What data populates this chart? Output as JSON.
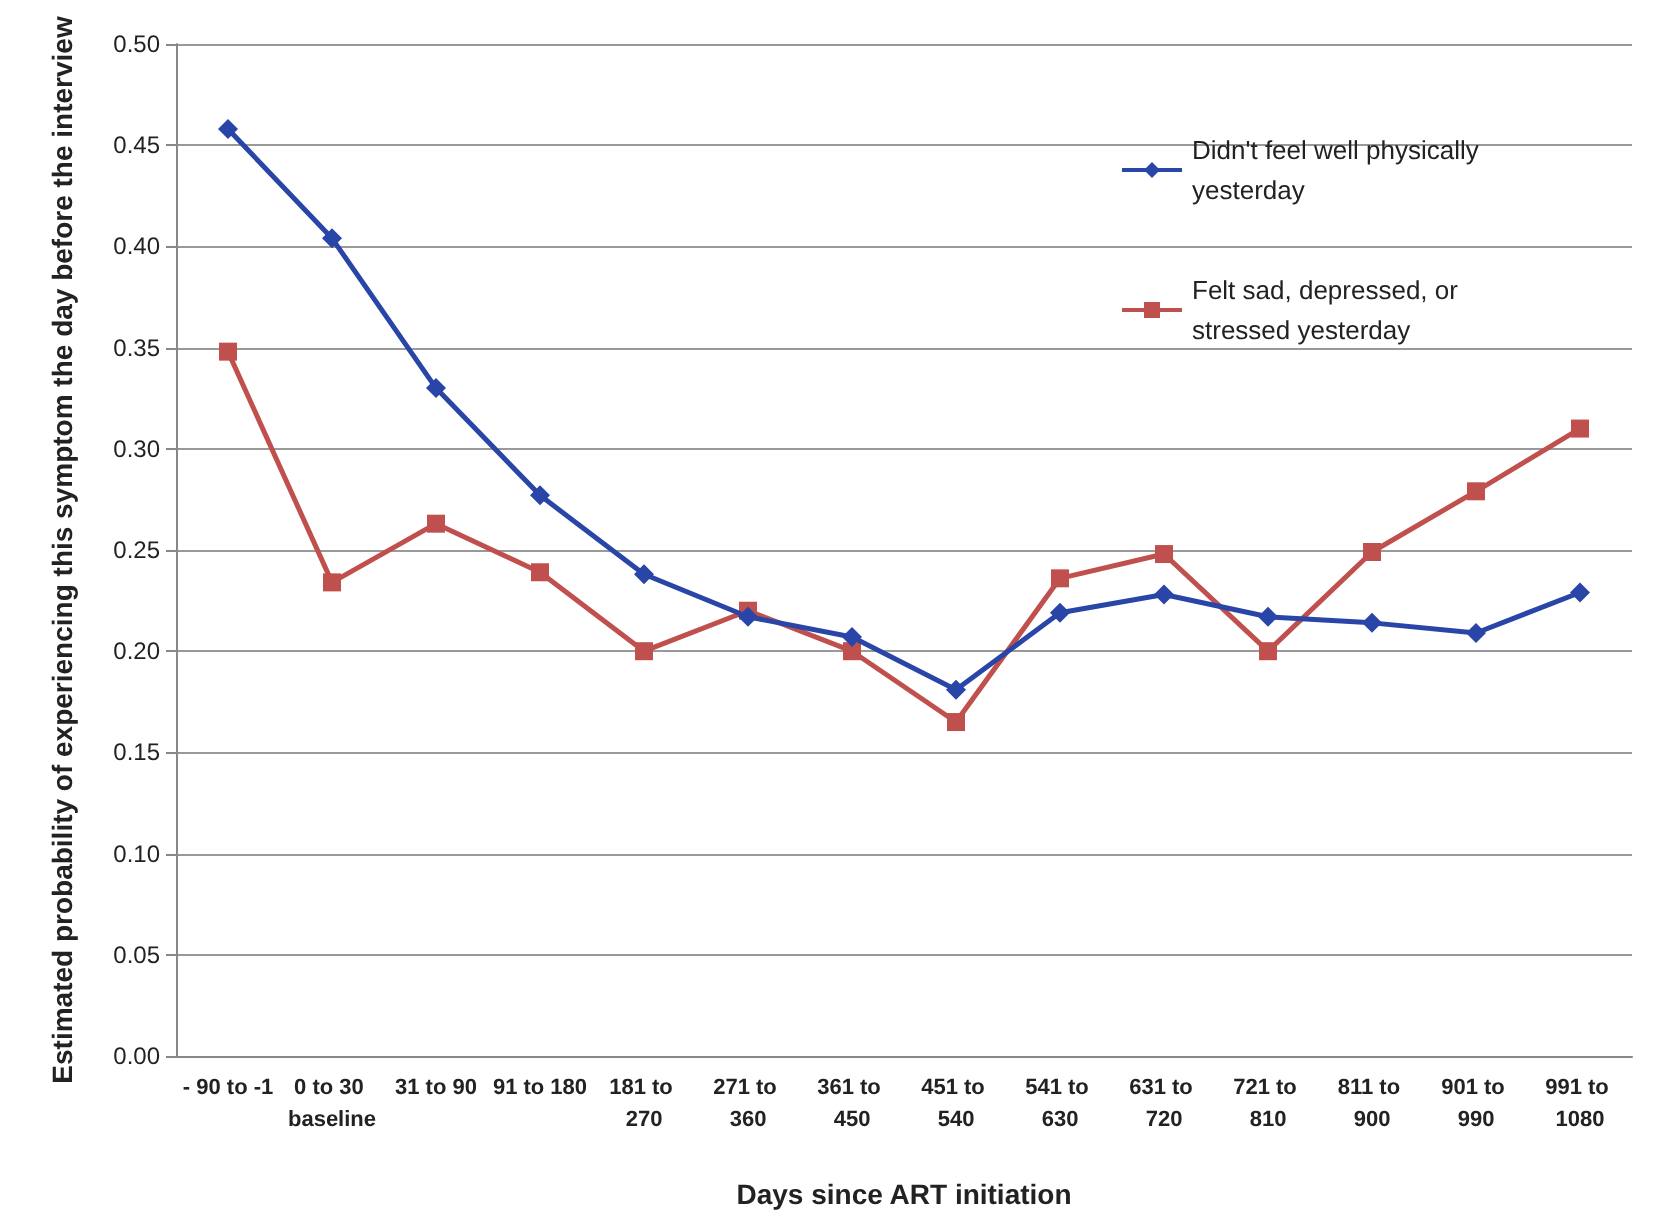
{
  "chart_data": {
    "type": "line",
    "xlabel": "Days since ART initiation",
    "ylabel": "Estimated probability of experiencing this symptom the day before the interview",
    "categories": [
      "- 90 to -1",
      "0 to 30 baseline",
      "31 to 90",
      "91 to 180",
      "181 to 270",
      "271 to 360",
      "361 to 450",
      "451 to 540",
      "541 to 630",
      "631 to 720",
      "721 to 810",
      "811 to 900",
      "901 to 990",
      "991 to 1080"
    ],
    "series": [
      {
        "name": "Didn't feel well physically yesterday",
        "color": "#2a45a8",
        "marker": "diamond",
        "values": [
          0.458,
          0.404,
          0.33,
          0.277,
          0.238,
          0.217,
          0.207,
          0.181,
          0.219,
          0.228,
          0.217,
          0.214,
          0.209,
          0.229
        ]
      },
      {
        "name": "Felt sad, depressed, or stressed yesterday",
        "color": "#c0504d",
        "marker": "square",
        "values": [
          0.348,
          0.234,
          0.263,
          0.239,
          0.2,
          0.22,
          0.2,
          0.165,
          0.236,
          0.248,
          0.2,
          0.249,
          0.279,
          0.31
        ]
      }
    ],
    "ylim": [
      0,
      0.5
    ],
    "yticks": [
      {
        "value": 0,
        "label": "0.00"
      },
      {
        "value": 0.05,
        "label": "0.05"
      },
      {
        "value": 0.1,
        "label": "0.10"
      },
      {
        "value": 0.15,
        "label": "0.15"
      },
      {
        "value": 0.2,
        "label": "0.20"
      },
      {
        "value": 0.25,
        "label": "0.25"
      },
      {
        "value": 0.3,
        "label": "0.30"
      },
      {
        "value": 0.35,
        "label": "0.35"
      },
      {
        "value": 0.4,
        "label": "0.40"
      },
      {
        "value": 0.45,
        "label": "0.45"
      },
      {
        "value": 0.5,
        "label": "0.50"
      }
    ],
    "grid": "y",
    "legend": "top right"
  }
}
